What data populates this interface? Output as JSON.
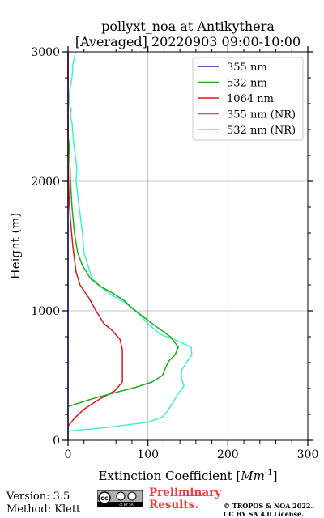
{
  "chart_data": {
    "type": "line",
    "title_line1": "pollyxt_noa at Antikythera",
    "title_line2": "[Averaged] 20220903 09:00-10:00",
    "xlabel": "Extinction Coefficient [$Mm^{-1}$]",
    "xlabel_text": "Extinction Coefficient [",
    "xlabel_unit": "Mm",
    "xlabel_exp": "-1",
    "xlabel_close": "]",
    "ylabel": "Height (m)",
    "xlim": [
      0,
      300
    ],
    "ylim": [
      0,
      3000
    ],
    "xticks": [
      "0",
      "100",
      "200",
      "300"
    ],
    "yticks": [
      "0",
      "1000",
      "2000",
      "3000"
    ],
    "grid": true,
    "legend_position": "top-right",
    "series": [
      {
        "name": "355 nm",
        "color": "#1a1ad6",
        "points": [
          [
            0,
            0
          ],
          [
            0,
            3000
          ]
        ]
      },
      {
        "name": "532 nm",
        "color": "#1aab1a",
        "points": [
          [
            0,
            260
          ],
          [
            30,
            320
          ],
          [
            60,
            370
          ],
          [
            85,
            410
          ],
          [
            105,
            450
          ],
          [
            118,
            500
          ],
          [
            122,
            560
          ],
          [
            126,
            610
          ],
          [
            134,
            660
          ],
          [
            138,
            720
          ],
          [
            128,
            800
          ],
          [
            110,
            880
          ],
          [
            95,
            950
          ],
          [
            80,
            1020
          ],
          [
            70,
            1080
          ],
          [
            55,
            1140
          ],
          [
            40,
            1190
          ],
          [
            28,
            1250
          ],
          [
            18,
            1350
          ],
          [
            12,
            1450
          ],
          [
            8,
            1600
          ],
          [
            5,
            1800
          ],
          [
            3,
            2000
          ],
          [
            2,
            2200
          ],
          [
            1,
            2300
          ],
          [
            0,
            2350
          ]
        ]
      },
      {
        "name": "1064 nm",
        "color": "#d61a1a",
        "points": [
          [
            0,
            110
          ],
          [
            8,
            170
          ],
          [
            20,
            240
          ],
          [
            40,
            320
          ],
          [
            58,
            380
          ],
          [
            68,
            450
          ],
          [
            68,
            550
          ],
          [
            68,
            700
          ],
          [
            65,
            780
          ],
          [
            55,
            850
          ],
          [
            45,
            900
          ],
          [
            35,
            1000
          ],
          [
            26,
            1100
          ],
          [
            15,
            1200
          ],
          [
            10,
            1300
          ],
          [
            6,
            1500
          ],
          [
            3,
            1700
          ],
          [
            1,
            1900
          ],
          [
            0,
            2200
          ],
          [
            0,
            3000
          ]
        ]
      },
      {
        "name": "355 nm (NR)",
        "color": "#9b4ee8",
        "points": [
          [
            0,
            0
          ],
          [
            0,
            3000
          ]
        ]
      },
      {
        "name": "532 nm (NR)",
        "color": "#3ef2d0",
        "points": [
          [
            0,
            70
          ],
          [
            50,
            100
          ],
          [
            100,
            140
          ],
          [
            118,
            180
          ],
          [
            125,
            230
          ],
          [
            132,
            300
          ],
          [
            138,
            360
          ],
          [
            145,
            420
          ],
          [
            142,
            480
          ],
          [
            142,
            540
          ],
          [
            148,
            600
          ],
          [
            155,
            660
          ],
          [
            154,
            720
          ],
          [
            140,
            760
          ],
          [
            115,
            820
          ],
          [
            100,
            900
          ],
          [
            85,
            1000
          ],
          [
            72,
            1060
          ],
          [
            55,
            1120
          ],
          [
            42,
            1180
          ],
          [
            30,
            1250
          ],
          [
            25,
            1350
          ],
          [
            20,
            1450
          ],
          [
            18,
            1600
          ],
          [
            14,
            1800
          ],
          [
            10,
            2000
          ],
          [
            11,
            2100
          ],
          [
            9,
            2200
          ],
          [
            7,
            2300
          ],
          [
            5,
            2450
          ],
          [
            3,
            2500
          ],
          [
            4,
            2560
          ],
          [
            1,
            2600
          ],
          [
            2,
            2700
          ],
          [
            5,
            2800
          ],
          [
            6,
            2900
          ],
          [
            8,
            2950
          ],
          [
            9,
            3000
          ]
        ]
      }
    ]
  },
  "footer": {
    "version": "Version: 3.5",
    "method": "Method: Klett",
    "preliminary_line1": "Preliminary",
    "preliminary_line2": "Results.",
    "copyright_line1": "© TROPOS & NOA 2022.",
    "copyright_line2": "CC BY SA 4.0 License.",
    "license_logo_text": "cc BY SA"
  }
}
